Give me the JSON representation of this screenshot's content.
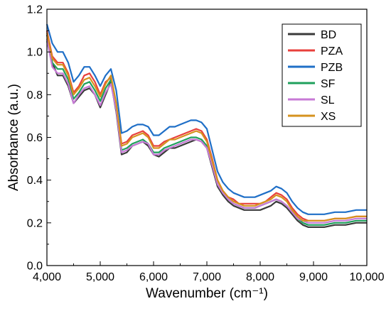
{
  "chart_data": {
    "type": "line",
    "xlabel": "Wavenumber (cm⁻¹)",
    "ylabel": "Absorbance (a.u.)",
    "xlim": [
      4000,
      10000
    ],
    "ylim": [
      0.0,
      1.2
    ],
    "x_ticks": [
      4000,
      5000,
      6000,
      7000,
      8000,
      9000,
      10000
    ],
    "x_tick_labels": [
      "4,000",
      "5,000",
      "6,000",
      "7,000",
      "8,000",
      "9,000",
      "10,000"
    ],
    "y_ticks": [
      0.0,
      0.2,
      0.4,
      0.6,
      0.8,
      1.0,
      1.2
    ],
    "y_tick_labels": [
      "0.0",
      "0.2",
      "0.4",
      "0.6",
      "0.8",
      "1.0",
      "1.2"
    ],
    "grid": false,
    "legend_position": "top-right",
    "x": [
      4000,
      4100,
      4200,
      4300,
      4400,
      4500,
      4600,
      4700,
      4800,
      4900,
      5000,
      5100,
      5200,
      5300,
      5400,
      5500,
      5600,
      5700,
      5800,
      5900,
      6000,
      6100,
      6200,
      6300,
      6400,
      6500,
      6600,
      6700,
      6800,
      6900,
      7000,
      7100,
      7200,
      7300,
      7400,
      7500,
      7600,
      7700,
      7800,
      7900,
      8000,
      8100,
      8200,
      8300,
      8400,
      8500,
      8600,
      8700,
      8800,
      8900,
      9000,
      9200,
      9400,
      9600,
      9800,
      10000
    ],
    "series": [
      {
        "name": "BD",
        "color": "#3a3a3a",
        "values": [
          1.08,
          0.95,
          0.89,
          0.89,
          0.84,
          0.76,
          0.79,
          0.82,
          0.83,
          0.8,
          0.74,
          0.8,
          0.86,
          0.72,
          0.52,
          0.53,
          0.56,
          0.57,
          0.58,
          0.56,
          0.52,
          0.51,
          0.53,
          0.55,
          0.55,
          0.56,
          0.57,
          0.58,
          0.59,
          0.58,
          0.55,
          0.46,
          0.37,
          0.33,
          0.3,
          0.28,
          0.27,
          0.26,
          0.26,
          0.26,
          0.26,
          0.27,
          0.28,
          0.3,
          0.29,
          0.27,
          0.24,
          0.21,
          0.19,
          0.18,
          0.18,
          0.18,
          0.19,
          0.19,
          0.2,
          0.2
        ]
      },
      {
        "name": "PZA",
        "color": "#e8403c",
        "values": [
          1.1,
          0.98,
          0.95,
          0.95,
          0.9,
          0.81,
          0.84,
          0.89,
          0.9,
          0.86,
          0.8,
          0.86,
          0.88,
          0.75,
          0.57,
          0.58,
          0.61,
          0.62,
          0.63,
          0.61,
          0.56,
          0.56,
          0.58,
          0.59,
          0.6,
          0.61,
          0.62,
          0.63,
          0.64,
          0.63,
          0.59,
          0.5,
          0.4,
          0.35,
          0.32,
          0.31,
          0.29,
          0.29,
          0.29,
          0.29,
          0.29,
          0.3,
          0.32,
          0.34,
          0.33,
          0.31,
          0.27,
          0.24,
          0.22,
          0.21,
          0.21,
          0.21,
          0.22,
          0.22,
          0.23,
          0.23
        ]
      },
      {
        "name": "PZB",
        "color": "#1f6fc7",
        "values": [
          1.13,
          1.04,
          1.0,
          1.0,
          0.95,
          0.86,
          0.89,
          0.93,
          0.93,
          0.89,
          0.84,
          0.89,
          0.92,
          0.82,
          0.62,
          0.63,
          0.65,
          0.66,
          0.66,
          0.65,
          0.61,
          0.61,
          0.63,
          0.65,
          0.65,
          0.66,
          0.67,
          0.68,
          0.68,
          0.67,
          0.64,
          0.54,
          0.44,
          0.39,
          0.36,
          0.34,
          0.33,
          0.32,
          0.32,
          0.32,
          0.33,
          0.34,
          0.35,
          0.37,
          0.36,
          0.34,
          0.3,
          0.27,
          0.25,
          0.24,
          0.24,
          0.24,
          0.25,
          0.25,
          0.26,
          0.26
        ]
      },
      {
        "name": "SF",
        "color": "#1fa05c",
        "values": [
          1.05,
          0.95,
          0.92,
          0.92,
          0.87,
          0.78,
          0.81,
          0.85,
          0.86,
          0.82,
          0.77,
          0.83,
          0.87,
          0.73,
          0.54,
          0.55,
          0.57,
          0.58,
          0.59,
          0.57,
          0.53,
          0.53,
          0.55,
          0.56,
          0.57,
          0.58,
          0.59,
          0.6,
          0.6,
          0.59,
          0.56,
          0.48,
          0.38,
          0.34,
          0.31,
          0.29,
          0.28,
          0.27,
          0.27,
          0.27,
          0.28,
          0.29,
          0.3,
          0.31,
          0.3,
          0.28,
          0.25,
          0.22,
          0.2,
          0.19,
          0.19,
          0.19,
          0.2,
          0.2,
          0.21,
          0.21
        ]
      },
      {
        "name": "SL",
        "color": "#c77ad6",
        "values": [
          1.06,
          0.93,
          0.9,
          0.9,
          0.85,
          0.76,
          0.8,
          0.83,
          0.84,
          0.8,
          0.75,
          0.81,
          0.85,
          0.73,
          0.53,
          0.54,
          0.56,
          0.57,
          0.58,
          0.57,
          0.52,
          0.52,
          0.54,
          0.55,
          0.56,
          0.57,
          0.58,
          0.59,
          0.59,
          0.58,
          0.55,
          0.47,
          0.38,
          0.34,
          0.31,
          0.29,
          0.28,
          0.27,
          0.27,
          0.27,
          0.28,
          0.29,
          0.3,
          0.31,
          0.3,
          0.28,
          0.25,
          0.22,
          0.21,
          0.2,
          0.2,
          0.2,
          0.21,
          0.21,
          0.22,
          0.22
        ]
      },
      {
        "name": "XS",
        "color": "#d6921e",
        "values": [
          1.09,
          0.97,
          0.94,
          0.94,
          0.89,
          0.8,
          0.83,
          0.87,
          0.88,
          0.84,
          0.79,
          0.85,
          0.89,
          0.76,
          0.56,
          0.57,
          0.6,
          0.61,
          0.62,
          0.6,
          0.55,
          0.55,
          0.57,
          0.59,
          0.59,
          0.6,
          0.61,
          0.62,
          0.63,
          0.62,
          0.58,
          0.49,
          0.4,
          0.35,
          0.32,
          0.3,
          0.29,
          0.28,
          0.28,
          0.28,
          0.29,
          0.3,
          0.31,
          0.33,
          0.32,
          0.3,
          0.26,
          0.23,
          0.21,
          0.21,
          0.21,
          0.21,
          0.22,
          0.22,
          0.23,
          0.23
        ]
      }
    ]
  }
}
